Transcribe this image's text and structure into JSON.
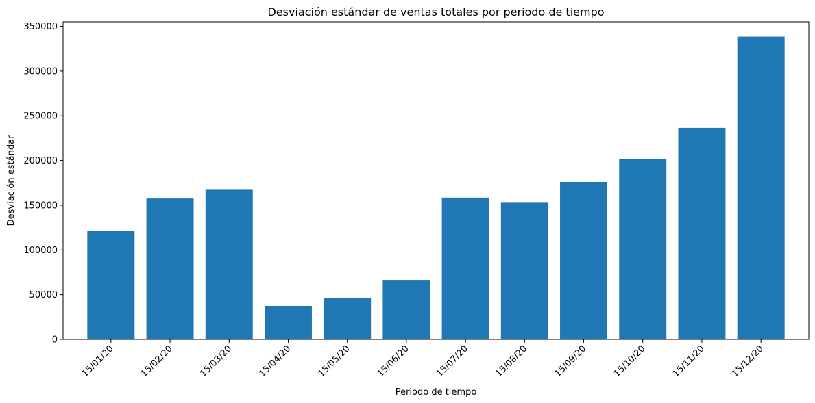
{
  "chart_data": {
    "type": "bar",
    "title": "Desviación estándar de ventas totales por periodo de tiempo",
    "xlabel": "Periodo de tiempo",
    "ylabel": "Desviación estándar",
    "categories": [
      "15/01/20",
      "15/02/20",
      "15/03/20",
      "15/04/20",
      "15/05/20",
      "15/06/20",
      "15/07/20",
      "15/08/20",
      "15/09/20",
      "15/10/20",
      "15/11/20",
      "15/12/20"
    ],
    "values": [
      121500,
      157500,
      168000,
      37500,
      46500,
      66500,
      158500,
      153500,
      176000,
      201500,
      236500,
      338500
    ],
    "ylim": [
      0,
      355000
    ],
    "yticks": [
      0,
      50000,
      100000,
      150000,
      200000,
      250000,
      300000,
      350000
    ],
    "bar_color": "#1f77b4",
    "grid": false,
    "legend": "none"
  }
}
